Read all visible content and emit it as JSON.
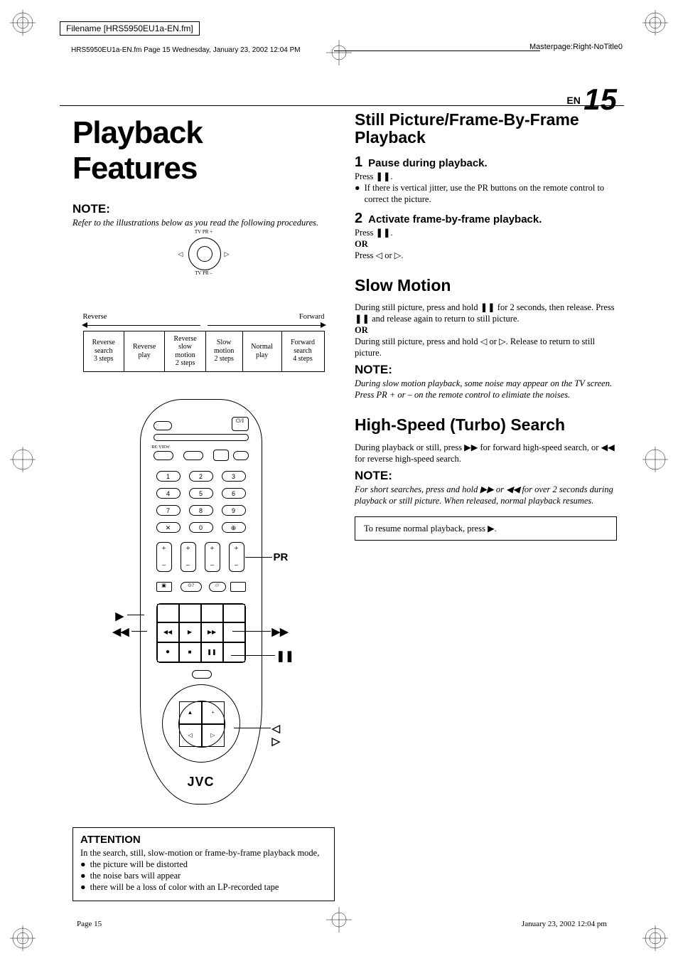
{
  "meta": {
    "filename_label": "Filename [HRS5950EU1a-EN.fm]",
    "header_line": "HRS5950EU1a-EN.fm  Page 15  Wednesday, January 23, 2002  12:04 PM",
    "masterpage": "Masterpage:Right-NoTitle0",
    "footer_left": "Page 15",
    "footer_right": "January 23, 2002 12:04 pm",
    "en_label": "EN",
    "page_number": "15"
  },
  "left": {
    "title": "Playback Features",
    "note_heading": "NOTE:",
    "note_text": "Refer to the illustrations below as you read the following procedures.",
    "speed_reverse_label": "Reverse",
    "speed_forward_label": "Forward",
    "speed_cells": [
      "Reverse\nsearch\n3 steps",
      "Reverse\nplay",
      "Reverse\nslow\nmotion\n2 steps",
      "Slow\nmotion\n2 steps",
      "Normal\nplay",
      "Forward\nsearch\n4 steps"
    ],
    "callouts": {
      "pr": "PR",
      "play": "▶",
      "rew": "◀◀",
      "ff": "▶▶",
      "pause": "❚❚",
      "lr": "◁ ▷"
    },
    "brand": "JVC",
    "attention": {
      "heading": "ATTENTION",
      "intro": "In the search, still, slow-motion or frame-by-frame playback mode,",
      "bullets": [
        "the picture will be distorted",
        "the noise bars will appear",
        "there will be a loss of color with an LP-recorded tape"
      ]
    }
  },
  "right": {
    "sec1_title": "Still Picture/Frame-By-Frame Playback",
    "step1_num": "1",
    "step1_title": "Pause during playback.",
    "step1_press": "Press ❚❚.",
    "step1_bullet": "If there is vertical jitter, use the PR buttons on the remote control to correct the picture.",
    "step2_num": "2",
    "step2_title": "Activate frame-by-frame playback.",
    "step2_press": "Press ❚❚.",
    "step2_or": "OR",
    "step2_press2": "Press ◁ or ▷.",
    "sec2_title": "Slow Motion",
    "sec2_p1": "During still picture, press and hold ❚❚ for 2 seconds, then release. Press ❚❚ and release again to return to still picture.",
    "sec2_or": "OR",
    "sec2_p2": "During still picture, press and hold ◁ or ▷. Release to return to still picture.",
    "sec2_note_h": "NOTE:",
    "sec2_note_t": "During slow motion playback, some noise may appear on the TV screen. Press PR + or – on the remote control to elimiate the noises.",
    "sec3_title": "High-Speed (Turbo) Search",
    "sec3_p": "During playback or still, press ▶▶ for forward high-speed search, or ◀◀ for reverse high-speed search.",
    "sec3_note_h": "NOTE:",
    "sec3_note_t": "For short searches, press and hold ▶▶ or ◀◀ for over 2 seconds during playback or still picture. When released, normal playback resumes.",
    "resume": "To resume normal playback, press ▶."
  },
  "style": {
    "bg": "#ffffff",
    "text": "#000000",
    "title_font": "Arial",
    "body_font": "Georgia",
    "title_size_pt": 44,
    "section_size_pt": 23,
    "note_heading_size_pt": 17,
    "body_size_pt": 12.5,
    "step_num_size_pt": 20,
    "page_num_size_pt": 42
  }
}
